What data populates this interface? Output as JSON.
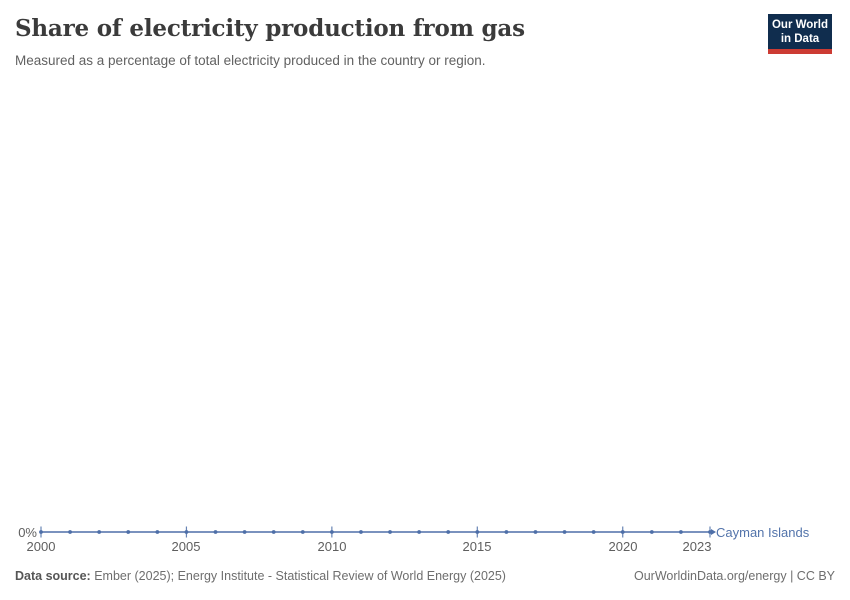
{
  "header": {
    "title": "Share of electricity production from gas",
    "subtitle": "Measured as a percentage of total electricity produced in the country or region."
  },
  "logo": {
    "line1": "Our World",
    "line2": "in Data"
  },
  "colors": {
    "line": "#4e6fa8",
    "entity_label": "#5374ab",
    "logo_background": "#102d4e",
    "logo_red_bar": "#cc3b33",
    "title_text": "#3b3b3b",
    "muted_text": "#6e6e6e"
  },
  "chart_data": {
    "type": "line",
    "title": "Share of electricity production from gas",
    "subtitle": "Measured as a percentage of total electricity produced in the country or region.",
    "xlabel": "",
    "ylabel": "",
    "unit": "%",
    "grid": false,
    "legend_position": "end-of-line",
    "x_range": [
      2000,
      2023
    ],
    "ylim": [
      0,
      100
    ],
    "x": [
      2000,
      2001,
      2002,
      2003,
      2004,
      2005,
      2006,
      2007,
      2008,
      2009,
      2010,
      2011,
      2012,
      2013,
      2014,
      2015,
      2016,
      2017,
      2018,
      2019,
      2020,
      2021,
      2022,
      2023
    ],
    "series": [
      {
        "name": "Cayman Islands",
        "color": "#4e6fa8",
        "values": [
          0,
          0,
          0,
          0,
          0,
          0,
          0,
          0,
          0,
          0,
          0,
          0,
          0,
          0,
          0,
          0,
          0,
          0,
          0,
          0,
          0,
          0,
          0,
          0
        ]
      }
    ],
    "xticks": [
      2000,
      2005,
      2010,
      2015,
      2020,
      2023
    ],
    "xtick_labels": [
      "2000",
      "2005",
      "2010",
      "2015",
      "2020",
      "2023"
    ],
    "ytick_labels": [
      "0%"
    ]
  },
  "footer": {
    "source_label": "Data source:",
    "source_text": " Ember (2025); Energy Institute - Statistical Review of World Energy (2025)",
    "credit": "OurWorldinData.org/energy | CC BY"
  }
}
